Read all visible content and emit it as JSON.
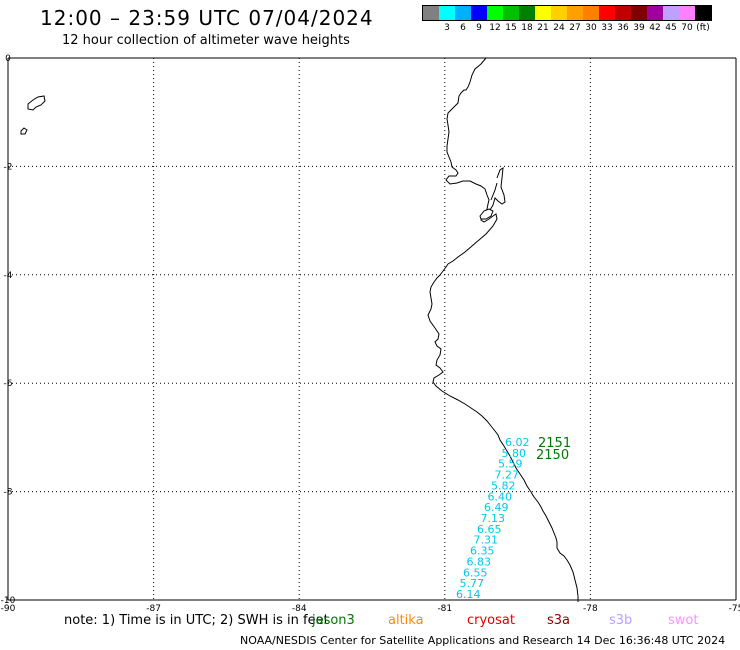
{
  "header": {
    "title": "12:00 – 23:59 UTC 07/04/2024",
    "subtitle": "12 hour collection of altimeter wave heights"
  },
  "legend": {
    "colors": [
      "#808080",
      "#00ffff",
      "#00b0ff",
      "#0000ff",
      "#00ff00",
      "#00c000",
      "#008000",
      "#ffff00",
      "#ffd000",
      "#ffa000",
      "#ff8000",
      "#ff0000",
      "#c00000",
      "#800000",
      "#a000a0",
      "#c0a0ff",
      "#ff80ff",
      "#000000"
    ],
    "labels": [
      "",
      "3",
      "6",
      "9",
      "12",
      "15",
      "18",
      "21",
      "24",
      "27",
      "30",
      "33",
      "36",
      "39",
      "42",
      "45",
      "70",
      "(ft)"
    ]
  },
  "map": {
    "lat_ticks": [
      "0",
      "-2",
      "-4",
      "-6",
      "-8",
      "-10"
    ],
    "lon_ticks": [
      "-90",
      "-87",
      "-84",
      "-81",
      "-78",
      "-75"
    ],
    "track_color": "#00c8e8",
    "wave_heights": [
      "6.02",
      "5.80",
      "5.59",
      "7.27",
      "5.82",
      "6.40",
      "6.49",
      "7.13",
      "6.65",
      "7.31",
      "6.35",
      "6.83",
      "6.55",
      "5.77",
      "6.14"
    ],
    "time_labels": [
      "2151",
      "2150"
    ],
    "time_label_color": "#007800"
  },
  "footer": {
    "note": "note:  1) Time is in UTC; 2) SWH is in feet",
    "missions": [
      {
        "name": "jason3",
        "color": "#007800"
      },
      {
        "name": "altika",
        "color": "#ff8c00"
      },
      {
        "name": "cryosat",
        "color": "#e00000"
      },
      {
        "name": "s3a",
        "color": "#900000"
      },
      {
        "name": "s3b",
        "color": "#b8a0ff"
      },
      {
        "name": "swot",
        "color": "#ff90ff"
      }
    ],
    "credit": "NOAA/NESDIS Center for Satellite Applications and Research     14 Dec 16:36:48 UTC 2024"
  }
}
